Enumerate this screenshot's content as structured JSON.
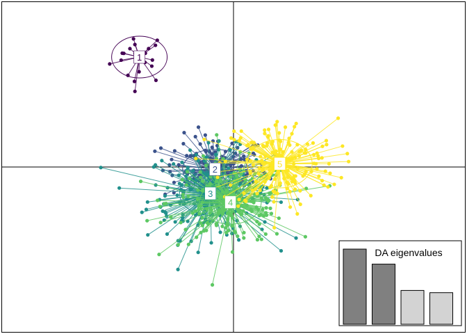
{
  "chart_data": {
    "type": "scatter",
    "title": "",
    "xlabel": "",
    "ylabel": "",
    "xlim": [
      -7.5,
      7.5
    ],
    "ylim": [
      -7.5,
      7.5
    ],
    "axes_lines": {
      "x": 0,
      "y": 0
    },
    "grid": false,
    "clusters": [
      {
        "label": "1",
        "color": "#440154",
        "center": [
          -3.05,
          5.0
        ],
        "spread": [
          0.55,
          0.7
        ],
        "ellipse": [
          0.9,
          0.95
        ],
        "n": 22
      },
      {
        "label": "2",
        "color": "#3B528B",
        "center": [
          -0.6,
          -0.1
        ],
        "spread": [
          1.0,
          0.9
        ],
        "ellipse": [
          1.05,
          0.9
        ],
        "n": 120
      },
      {
        "label": "3",
        "color": "#21908C",
        "center": [
          -0.75,
          -1.2
        ],
        "spread": [
          1.2,
          1.2
        ],
        "ellipse": [
          1.0,
          1.0
        ],
        "n": 200
      },
      {
        "label": "4",
        "color": "#5DC863",
        "center": [
          -0.1,
          -1.6
        ],
        "spread": [
          1.2,
          1.1
        ],
        "ellipse": [
          1.0,
          1.0
        ],
        "n": 200
      },
      {
        "label": "5",
        "color": "#FDE725",
        "center": [
          1.5,
          0.15
        ],
        "spread": [
          1.1,
          1.2
        ],
        "ellipse": [
          1.05,
          1.1
        ],
        "n": 180
      }
    ],
    "inset": {
      "title": "DA eigenvalues",
      "values": [
        100,
        80,
        45,
        42
      ],
      "retained": [
        true,
        true,
        false,
        false
      ],
      "colors": {
        "retained": "#808080",
        "other": "#D3D3D3"
      },
      "placement": "bottom-right"
    }
  }
}
